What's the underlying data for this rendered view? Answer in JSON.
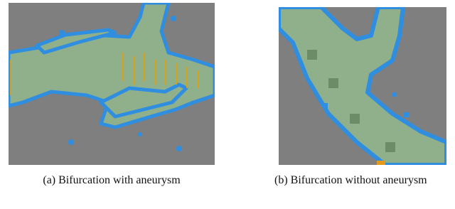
{
  "figure": {
    "subfigures": [
      {
        "caption": "(a) Bifurcation with aneurysm"
      },
      {
        "caption": "(b) Bifurcation without aneurysm"
      }
    ]
  }
}
